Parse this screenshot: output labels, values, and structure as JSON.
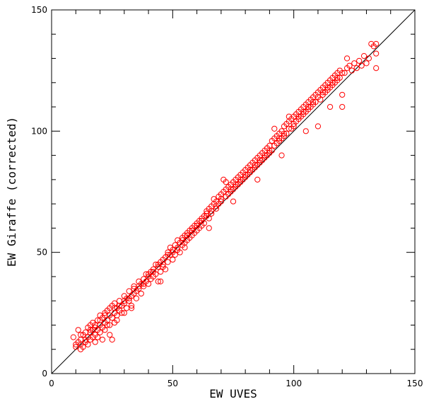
{
  "chart_data": {
    "type": "scatter",
    "xlabel": "EW UVES",
    "ylabel": "EW Giraffe (corrected)",
    "xlim": [
      0,
      150
    ],
    "ylim": [
      0,
      150
    ],
    "x_ticks": [
      "0",
      "50",
      "100",
      "150"
    ],
    "y_ticks": [
      "0",
      "50",
      "100",
      "150"
    ],
    "marker_color": "#ff0000",
    "line_color": "#000000",
    "reference_line": {
      "from": [
        0,
        0
      ],
      "to": [
        150,
        150
      ]
    },
    "series": [
      {
        "points": [
          [
            9,
            15
          ],
          [
            10,
            12
          ],
          [
            10,
            11
          ],
          [
            11,
            13
          ],
          [
            11,
            18
          ],
          [
            12,
            10
          ],
          [
            12,
            14
          ],
          [
            12,
            12
          ],
          [
            13,
            16
          ],
          [
            13,
            11
          ],
          [
            14,
            13
          ],
          [
            14,
            17
          ],
          [
            15,
            19
          ],
          [
            15,
            15
          ],
          [
            15,
            12
          ],
          [
            16,
            14
          ],
          [
            16,
            20
          ],
          [
            16,
            17
          ],
          [
            17,
            15
          ],
          [
            17,
            18
          ],
          [
            17,
            21
          ],
          [
            18,
            16
          ],
          [
            18,
            19
          ],
          [
            18,
            13
          ],
          [
            19,
            22
          ],
          [
            19,
            18
          ],
          [
            19,
            15
          ],
          [
            20,
            20
          ],
          [
            20,
            17
          ],
          [
            20,
            24
          ],
          [
            21,
            19
          ],
          [
            21,
            23
          ],
          [
            21,
            14
          ],
          [
            22,
            21
          ],
          [
            22,
            25
          ],
          [
            22,
            18
          ],
          [
            23,
            22
          ],
          [
            23,
            20
          ],
          [
            23,
            26
          ],
          [
            24,
            24
          ],
          [
            24,
            27
          ],
          [
            24,
            16
          ],
          [
            25,
            23
          ],
          [
            25,
            28
          ],
          [
            26,
            25
          ],
          [
            26,
            21
          ],
          [
            26,
            29
          ],
          [
            27,
            27
          ],
          [
            27,
            24
          ],
          [
            28,
            26
          ],
          [
            28,
            30
          ],
          [
            29,
            28
          ],
          [
            29,
            25
          ],
          [
            30,
            29
          ],
          [
            30,
            32
          ],
          [
            31,
            31
          ],
          [
            31,
            27
          ],
          [
            32,
            30
          ],
          [
            32,
            34
          ],
          [
            33,
            32
          ],
          [
            33,
            28
          ],
          [
            34,
            33
          ],
          [
            34,
            36
          ],
          [
            35,
            34
          ],
          [
            35,
            31
          ],
          [
            36,
            35
          ],
          [
            36,
            38
          ],
          [
            37,
            37
          ],
          [
            37,
            33
          ],
          [
            38,
            39
          ],
          [
            38,
            36
          ],
          [
            39,
            38
          ],
          [
            39,
            41
          ],
          [
            40,
            40
          ],
          [
            40,
            37
          ],
          [
            41,
            42
          ],
          [
            41,
            39
          ],
          [
            42,
            43
          ],
          [
            42,
            40
          ],
          [
            43,
            41
          ],
          [
            43,
            45
          ],
          [
            44,
            44
          ],
          [
            44,
            38
          ],
          [
            45,
            46
          ],
          [
            45,
            42
          ],
          [
            46,
            47
          ],
          [
            46,
            44
          ],
          [
            47,
            48
          ],
          [
            47,
            43
          ],
          [
            48,
            50
          ],
          [
            48,
            46
          ],
          [
            49,
            49
          ],
          [
            49,
            52
          ],
          [
            50,
            51
          ],
          [
            50,
            47
          ],
          [
            51,
            53
          ],
          [
            51,
            49
          ],
          [
            52,
            52
          ],
          [
            52,
            55
          ],
          [
            53,
            54
          ],
          [
            53,
            50
          ],
          [
            54,
            56
          ],
          [
            54,
            53
          ],
          [
            55,
            57
          ],
          [
            55,
            54
          ],
          [
            56,
            58
          ],
          [
            56,
            55
          ],
          [
            57,
            59
          ],
          [
            57,
            56
          ],
          [
            58,
            60
          ],
          [
            58,
            57
          ],
          [
            59,
            61
          ],
          [
            59,
            58
          ],
          [
            60,
            62
          ],
          [
            60,
            59
          ],
          [
            61,
            63
          ],
          [
            61,
            60
          ],
          [
            62,
            64
          ],
          [
            62,
            61
          ],
          [
            63,
            65
          ],
          [
            63,
            62
          ],
          [
            64,
            66
          ],
          [
            64,
            67
          ],
          [
            65,
            68
          ],
          [
            65,
            64
          ],
          [
            66,
            69
          ],
          [
            66,
            66
          ],
          [
            67,
            70
          ],
          [
            67,
            72
          ],
          [
            68,
            71
          ],
          [
            68,
            68
          ],
          [
            69,
            73
          ],
          [
            69,
            70
          ],
          [
            70,
            74
          ],
          [
            70,
            71
          ],
          [
            71,
            75
          ],
          [
            71,
            80
          ],
          [
            72,
            76
          ],
          [
            72,
            79
          ],
          [
            73,
            77
          ],
          [
            73,
            74
          ],
          [
            74,
            78
          ],
          [
            74,
            75
          ],
          [
            75,
            79
          ],
          [
            75,
            76
          ],
          [
            76,
            80
          ],
          [
            76,
            77
          ],
          [
            77,
            81
          ],
          [
            77,
            78
          ],
          [
            78,
            82
          ],
          [
            78,
            79
          ],
          [
            79,
            83
          ],
          [
            79,
            80
          ],
          [
            80,
            84
          ],
          [
            80,
            81
          ],
          [
            81,
            85
          ],
          [
            81,
            82
          ],
          [
            82,
            86
          ],
          [
            82,
            83
          ],
          [
            83,
            87
          ],
          [
            83,
            84
          ],
          [
            84,
            88
          ],
          [
            84,
            85
          ],
          [
            85,
            89
          ],
          [
            85,
            86
          ],
          [
            86,
            90
          ],
          [
            86,
            87
          ],
          [
            87,
            91
          ],
          [
            87,
            88
          ],
          [
            88,
            92
          ],
          [
            88,
            89
          ],
          [
            89,
            93
          ],
          [
            89,
            90
          ],
          [
            90,
            94
          ],
          [
            90,
            91
          ],
          [
            91,
            96
          ],
          [
            91,
            92
          ],
          [
            92,
            97
          ],
          [
            92,
            101
          ],
          [
            93,
            98
          ],
          [
            93,
            95
          ],
          [
            94,
            99
          ],
          [
            94,
            96
          ],
          [
            95,
            100
          ],
          [
            95,
            97
          ],
          [
            96,
            102
          ],
          [
            96,
            98
          ],
          [
            97,
            103
          ],
          [
            97,
            99
          ],
          [
            98,
            104
          ],
          [
            98,
            106
          ],
          [
            99,
            105
          ],
          [
            99,
            101
          ],
          [
            100,
            106
          ],
          [
            100,
            102
          ],
          [
            101,
            107
          ],
          [
            101,
            104
          ],
          [
            102,
            108
          ],
          [
            102,
            105
          ],
          [
            103,
            109
          ],
          [
            103,
            106
          ],
          [
            104,
            110
          ],
          [
            104,
            107
          ],
          [
            105,
            111
          ],
          [
            105,
            108
          ],
          [
            106,
            112
          ],
          [
            106,
            109
          ],
          [
            107,
            113
          ],
          [
            107,
            110
          ],
          [
            108,
            114
          ],
          [
            108,
            111
          ],
          [
            109,
            115
          ],
          [
            109,
            112
          ],
          [
            110,
            116
          ],
          [
            110,
            102
          ],
          [
            111,
            117
          ],
          [
            111,
            113
          ],
          [
            112,
            115
          ],
          [
            112,
            118
          ],
          [
            113,
            119
          ],
          [
            113,
            116
          ],
          [
            114,
            120
          ],
          [
            114,
            117
          ],
          [
            115,
            121
          ],
          [
            115,
            118
          ],
          [
            116,
            122
          ],
          [
            116,
            119
          ],
          [
            117,
            123
          ],
          [
            117,
            120
          ],
          [
            118,
            124
          ],
          [
            118,
            121
          ],
          [
            119,
            125
          ],
          [
            119,
            122
          ],
          [
            120,
            110
          ],
          [
            120,
            115
          ],
          [
            121,
            124
          ],
          [
            122,
            130
          ],
          [
            122,
            126
          ],
          [
            123,
            127
          ],
          [
            124,
            125
          ],
          [
            125,
            128
          ],
          [
            126,
            126
          ],
          [
            127,
            129
          ],
          [
            128,
            127
          ],
          [
            129,
            131
          ],
          [
            130,
            128
          ],
          [
            131,
            130
          ],
          [
            132,
            136
          ],
          [
            133,
            135
          ],
          [
            134,
            132
          ],
          [
            134,
            126
          ],
          [
            134,
            136
          ],
          [
            12,
            16
          ],
          [
            14,
            14
          ],
          [
            16,
            18
          ],
          [
            18,
            20
          ],
          [
            20,
            22
          ],
          [
            22,
            24
          ],
          [
            24,
            20
          ],
          [
            26,
            27
          ],
          [
            28,
            28
          ],
          [
            30,
            30
          ],
          [
            32,
            31
          ],
          [
            34,
            35
          ],
          [
            36,
            36
          ],
          [
            38,
            37
          ],
          [
            40,
            41
          ],
          [
            42,
            42
          ],
          [
            44,
            45
          ],
          [
            46,
            45
          ],
          [
            48,
            49
          ],
          [
            50,
            50
          ],
          [
            52,
            51
          ],
          [
            54,
            55
          ],
          [
            56,
            57
          ],
          [
            58,
            59
          ],
          [
            60,
            61
          ],
          [
            62,
            63
          ],
          [
            64,
            65
          ],
          [
            66,
            67
          ],
          [
            68,
            69
          ],
          [
            70,
            72
          ],
          [
            72,
            73
          ],
          [
            74,
            76
          ],
          [
            76,
            78
          ],
          [
            78,
            80
          ],
          [
            80,
            82
          ],
          [
            82,
            84
          ],
          [
            84,
            86
          ],
          [
            86,
            88
          ],
          [
            88,
            90
          ],
          [
            90,
            92
          ],
          [
            92,
            94
          ],
          [
            94,
            97
          ],
          [
            96,
            99
          ],
          [
            98,
            101
          ],
          [
            100,
            103
          ],
          [
            102,
            106
          ],
          [
            104,
            108
          ],
          [
            106,
            110
          ],
          [
            108,
            112
          ],
          [
            110,
            114
          ],
          [
            112,
            116
          ],
          [
            114,
            118
          ],
          [
            116,
            120
          ],
          [
            118,
            122
          ],
          [
            120,
            124
          ],
          [
            25,
            14
          ],
          [
            27,
            22
          ],
          [
            30,
            25
          ],
          [
            33,
            27
          ],
          [
            45,
            38
          ],
          [
            55,
            52
          ],
          [
            65,
            60
          ],
          [
            75,
            71
          ],
          [
            85,
            80
          ],
          [
            95,
            90
          ],
          [
            105,
            100
          ],
          [
            115,
            110
          ]
        ]
      }
    ]
  }
}
